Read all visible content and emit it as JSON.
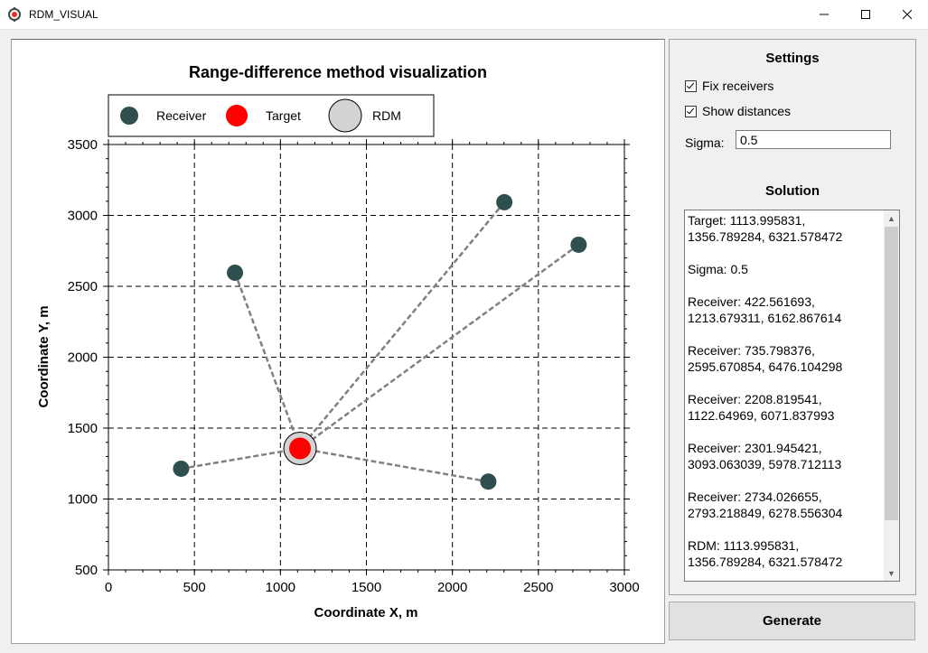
{
  "window": {
    "title": "RDM_VISUAL"
  },
  "settings": {
    "title": "Settings",
    "fix_receivers_label": "Fix receivers",
    "fix_receivers_checked": true,
    "show_distances_label": "Show distances",
    "show_distances_checked": true,
    "sigma_label": "Sigma:",
    "sigma_value": "0.5"
  },
  "solution": {
    "title": "Solution",
    "text": "Target: 1113.995831,\n1356.789284, 6321.578472\n\nSigma: 0.5\n\nReceiver: 422.561693,\n1213.679311, 6162.867614\n\nReceiver: 735.798376,\n2595.670854, 6476.104298\n\nReceiver: 2208.819541,\n1122.64969, 6071.837993\n\nReceiver: 2301.945421,\n3093.063039, 5978.712113\n\nReceiver: 2734.026655,\n2793.218849, 6278.556304\n\nRDM: 1113.995831,\n1356.789284, 6321.578472"
  },
  "generate_label": "Generate",
  "chart_data": {
    "type": "scatter",
    "title": "Range-difference method visualization",
    "xlabel": "Coordinate X, m",
    "ylabel": "Coordinate Y, m",
    "xlim": [
      0,
      3000
    ],
    "ylim": [
      500,
      3500
    ],
    "xticks": [
      0,
      500,
      1000,
      1500,
      2000,
      2500,
      3000
    ],
    "yticks": [
      500,
      1000,
      1500,
      2000,
      2500,
      3000,
      3500
    ],
    "grid": true,
    "legend_position": "top",
    "legend": [
      {
        "label": "Receiver",
        "color": "#2f4f4f"
      },
      {
        "label": "Target",
        "color": "#ff0000"
      },
      {
        "label": "RDM",
        "color": "#d3d3d3"
      }
    ],
    "series": [
      {
        "name": "Receiver",
        "color": "#2f4f4f",
        "points": [
          {
            "x": 422.561693,
            "y": 1213.679311
          },
          {
            "x": 735.798376,
            "y": 2595.670854
          },
          {
            "x": 2208.819541,
            "y": 1122.64969
          },
          {
            "x": 2301.945421,
            "y": 3093.063039
          },
          {
            "x": 2734.026655,
            "y": 2793.218849
          }
        ]
      },
      {
        "name": "Target",
        "color": "#ff0000",
        "points": [
          {
            "x": 1113.995831,
            "y": 1356.789284
          }
        ]
      },
      {
        "name": "RDM",
        "color": "#d3d3d3",
        "points": [
          {
            "x": 1113.995831,
            "y": 1356.789284
          }
        ]
      }
    ],
    "distance_lines": true
  }
}
